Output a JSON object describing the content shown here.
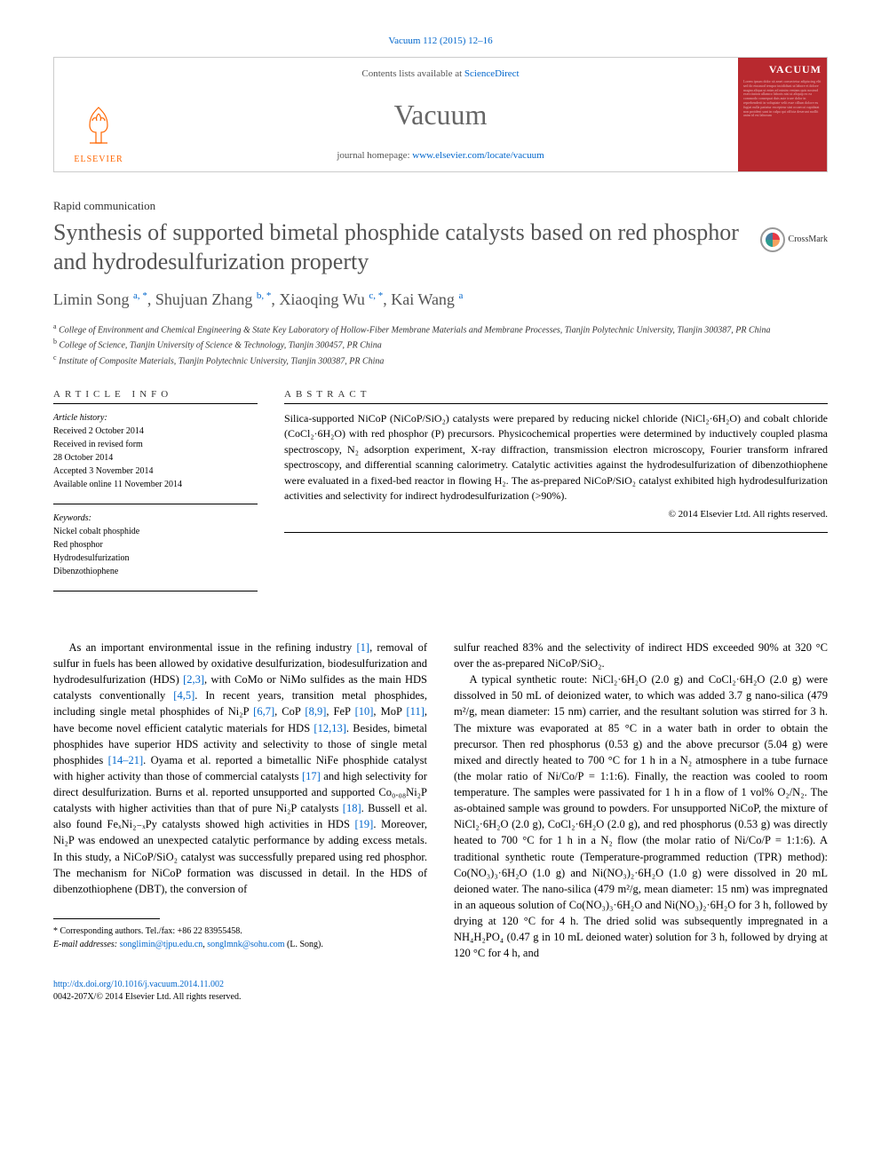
{
  "citation": "Vacuum 112 (2015) 12–16",
  "masthead": {
    "publisher": "ELSEVIER",
    "contents_prefix": "Contents lists available at ",
    "contents_link": "ScienceDirect",
    "journal": "Vacuum",
    "homepage_prefix": "journal homepage: ",
    "homepage_url": "www.elsevier.com/locate/vacuum",
    "cover_title": "VACUUM"
  },
  "article": {
    "type": "Rapid communication",
    "title": "Synthesis of supported bimetal phosphide catalysts based on red phosphor and hydrodesulfurization property",
    "crossmark": "CrossMark"
  },
  "authors": {
    "a1_name": "Limin Song ",
    "a1_sup": "a, *",
    "a2_name": ", Shujuan Zhang ",
    "a2_sup": "b, *",
    "a3_name": ", Xiaoqing Wu ",
    "a3_sup": "c, *",
    "a4_name": ", Kai Wang ",
    "a4_sup": "a"
  },
  "affiliations": {
    "a": "College of Environment and Chemical Engineering & State Key Laboratory of Hollow-Fiber Membrane Materials and Membrane Processes, Tianjin Polytechnic University, Tianjin 300387, PR China",
    "b": "College of Science, Tianjin University of Science & Technology, Tianjin 300457, PR China",
    "c": "Institute of Composite Materials, Tianjin Polytechnic University, Tianjin 300387, PR China"
  },
  "info": {
    "head": "ARTICLE INFO",
    "history_label": "Article history:",
    "received": "Received 2 October 2014",
    "revised": "Received in revised form",
    "revised_date": "28 October 2014",
    "accepted": "Accepted 3 November 2014",
    "online": "Available online 11 November 2014",
    "keywords_label": "Keywords:",
    "kw1": "Nickel cobalt phosphide",
    "kw2": "Red phosphor",
    "kw3": "Hydrodesulfurization",
    "kw4": "Dibenzothiophene"
  },
  "abstract": {
    "head": "ABSTRACT",
    "body": "Silica-supported NiCoP (NiCoP/SiO₂) catalysts were prepared by reducing nickel chloride (NiCl₂·6H₂O) and cobalt chloride (CoCl₂·6H₂O) with red phosphor (P) precursors. Physicochemical properties were determined by inductively coupled plasma spectroscopy, N₂ adsorption experiment, X-ray diffraction, transmission electron microscopy, Fourier transform infrared spectroscopy, and differential scanning calorimetry. Catalytic activities against the hydrodesulfurization of dibenzothiophene were evaluated in a fixed-bed reactor in flowing H₂. The as-prepared NiCoP/SiO₂ catalyst exhibited high hydrodesulfurization activities and selectivity for indirect hydrodesulfurization (>90%).",
    "copyright": "© 2014 Elsevier Ltd. All rights reserved."
  },
  "body": {
    "col1": "As an important environmental issue in the refining industry [1], removal of sulfur in fuels has been allowed by oxidative desulfurization, biodesulfurization and hydrodesulfurization (HDS) [2,3], with CoMo or NiMo sulfides as the main HDS catalysts conventionally [4,5]. In recent years, transition metal phosphides, including single metal phosphides of Ni₂P [6,7], CoP [8,9], FeP [10], MoP [11], have become novel efficient catalytic materials for HDS [12,13]. Besides, bimetal phosphides have superior HDS activity and selectivity to those of single metal phosphides [14–21]. Oyama et al. reported a bimetallic NiFe phosphide catalyst with higher activity than those of commercial catalysts [17] and high selectivity for direct desulfurization. Burns et al. reported unsupported and supported Co₀.₀₈Ni₂P catalysts with higher activities than that of pure Ni₂P catalysts [18]. Bussell et al. also found FeₓNi₂₋ₓPy catalysts showed high activities in HDS [19]. Moreover, Ni₂P was endowed an unexpected catalytic performance by adding excess metals. In this study, a NiCoP/SiO₂ catalyst was successfully prepared using red phosphor. The mechanism for NiCoP formation was discussed in detail. In the HDS of dibenzothiophene (DBT), the conversion of",
    "col2a": "sulfur reached 83% and the selectivity of indirect HDS exceeded 90% at 320 °C over the as-prepared NiCoP/SiO₂.",
    "col2b": "A typical synthetic route: NiCl₂·6H₂O (2.0 g) and CoCl₂·6H₂O (2.0 g) were dissolved in 50 mL of deionized water, to which was added 3.7 g nano-silica (479 m²/g, mean diameter: 15 nm) carrier, and the resultant solution was stirred for 3 h. The mixture was evaporated at 85 °C in a water bath in order to obtain the precursor. Then red phosphorus (0.53 g) and the above precursor (5.04 g) were mixed and directly heated to 700 °C for 1 h in a N₂ atmosphere in a tube furnace (the molar ratio of Ni/Co/P = 1:1:6). Finally, the reaction was cooled to room temperature. The samples were passivated for 1 h in a flow of 1 vol% O₂/N₂. The as-obtained sample was ground to powders. For unsupported NiCoP, the mixture of NiCl₂·6H₂O (2.0 g), CoCl₂·6H₂O (2.0 g), and red phosphorus (0.53 g) was directly heated to 700 °C for 1 h in a N₂ flow (the molar ratio of Ni/Co/P = 1:1:6). A traditional synthetic route (Temperature-programmed reduction (TPR) method): Co(NO₃)₃·6H₂O (1.0 g) and Ni(NO₃)₂·6H₂O (1.0 g) were dissolved in 20 mL deioned water. The nano-silica (479 m²/g, mean diameter: 15 nm) was impregnated in an aqueous solution of Co(NO₃)₃·6H₂O and Ni(NO₃)₂·6H₂O for 3 h, followed by drying at 120 °C for 4 h. The dried solid was subsequently impregnated in a NH₄H₂PO₄ (0.47 g in 10 mL deioned water) solution for 3 h, followed by drying at 120 °C for 4 h, and"
  },
  "footnotes": {
    "corresponding": "* Corresponding authors. Tel./fax: +86 22 83955458.",
    "email_label": "E-mail addresses: ",
    "email1": "songlimin@tjpu.edu.cn",
    "email2": "songlmnk@sohu.com",
    "email_tail": " (L. Song)."
  },
  "footer": {
    "doi": "http://dx.doi.org/10.1016/j.vacuum.2014.11.002",
    "issn": "0042-207X/© 2014 Elsevier Ltd. All rights reserved."
  },
  "colors": {
    "link": "#0066cc",
    "elsevier_orange": "#ff6600",
    "cover_red": "#b8292f",
    "heading_gray": "#545454",
    "text": "#000000"
  }
}
